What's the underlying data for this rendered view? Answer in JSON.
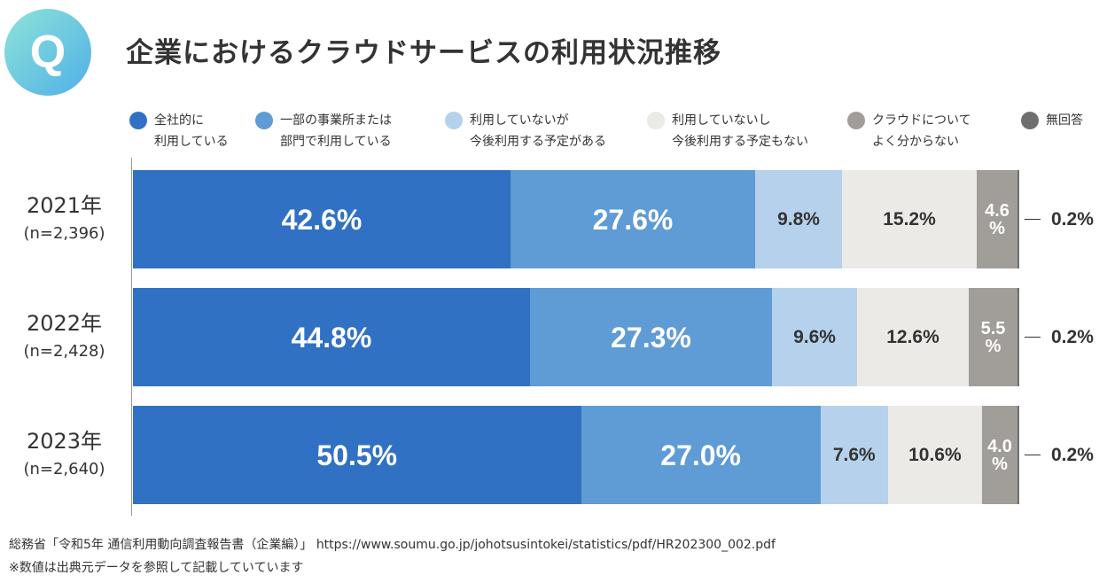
{
  "header": {
    "icon_letter": "Q",
    "title": "企業におけるクラウドサービスの利用状況推移"
  },
  "chart_data": {
    "type": "bar",
    "orientation": "horizontal",
    "stacked": true,
    "xlim": [
      0,
      100
    ],
    "legend": "top",
    "categories": [
      {
        "year": "2021年",
        "n": "(n=2,396)"
      },
      {
        "year": "2022年",
        "n": "(n=2,428)"
      },
      {
        "year": "2023年",
        "n": "(n=2,640)"
      }
    ],
    "series": [
      {
        "name": "全社的に\n利用している",
        "color": "#3171c3",
        "values": [
          42.6,
          44.8,
          50.5
        ]
      },
      {
        "name": "一部の事業所または\n部門で利用している",
        "color": "#5f9bd4",
        "values": [
          27.6,
          27.3,
          27.0
        ]
      },
      {
        "name": "利用していないが\n今後利用する予定がある",
        "color": "#b5d1ec",
        "values": [
          9.8,
          9.6,
          7.6
        ]
      },
      {
        "name": "利用していないし\n今後利用する予定もない",
        "color": "#eceae6",
        "values": [
          15.2,
          12.6,
          10.6
        ]
      },
      {
        "name": "クラウドについて\nよく分からない",
        "color": "#a19d99",
        "values": [
          4.6,
          5.5,
          4.0
        ]
      },
      {
        "name": "無回答",
        "color": "#6f6f6f",
        "values": [
          0.2,
          0.2,
          0.2
        ]
      }
    ],
    "data_labels": [
      [
        "42.6%",
        "27.6%",
        "9.8%",
        "15.2%",
        "4.6\n%",
        "0.2%"
      ],
      [
        "44.8%",
        "27.3%",
        "9.6%",
        "12.6%",
        "5.5\n%",
        "0.2%"
      ],
      [
        "50.5%",
        "27.0%",
        "7.6%",
        "10.6%",
        "4.0\n%",
        "0.2%"
      ]
    ]
  },
  "footer": {
    "source": "総務省「令和5年 通信利用動向調査報告書（企業編）」",
    "url": "https://www.soumu.go.jp/johotsusintokei/statistics/pdf/HR202300_002.pdf",
    "note": "※数値は出典元データを参照して記載していています"
  }
}
